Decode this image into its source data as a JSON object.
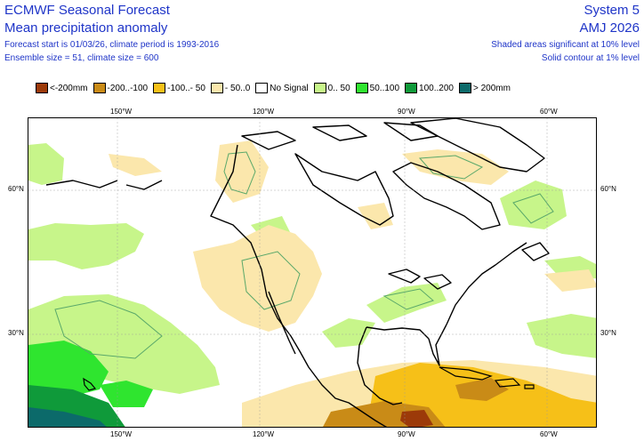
{
  "header": {
    "title_left_1": "ECMWF Seasonal Forecast",
    "title_left_2": "Mean precipitation anomaly",
    "meta_1": "Forecast start is 01/03/26, climate period is 1993-2016",
    "meta_2": "Ensemble size = 51, climate size = 600",
    "title_right_1": "System 5",
    "title_right_2": "AMJ 2026",
    "sig_1": "Shaded areas significant at 10% level",
    "sig_2": "Solid contour at 1% level"
  },
  "legend": [
    {
      "label": "<-200mm",
      "color": "#9c3a09"
    },
    {
      "label": "-200..-100",
      "color": "#c98b17"
    },
    {
      "label": "-100..- 50",
      "color": "#f6c018"
    },
    {
      "label": "- 50..0",
      "color": "#fbe7ac"
    },
    {
      "label": "No Signal",
      "color": "#ffffff"
    },
    {
      "label": "0.. 50",
      "color": "#c7f58a"
    },
    {
      "label": "50..100",
      "color": "#2fe52f"
    },
    {
      "label": "100..200",
      "color": "#0f9a3a"
    },
    {
      "label": "> 200mm",
      "color": "#0c6a6a"
    }
  ],
  "axes": {
    "top_lon": [
      "150°W",
      "120°W",
      "90°W",
      "60°W"
    ],
    "bottom_lon": [
      "150°W",
      "120°W",
      "90°W",
      "60°W"
    ],
    "left_lat": [
      "60°N",
      "30°N"
    ],
    "right_lat": [
      "60°N",
      "30°N"
    ]
  }
}
